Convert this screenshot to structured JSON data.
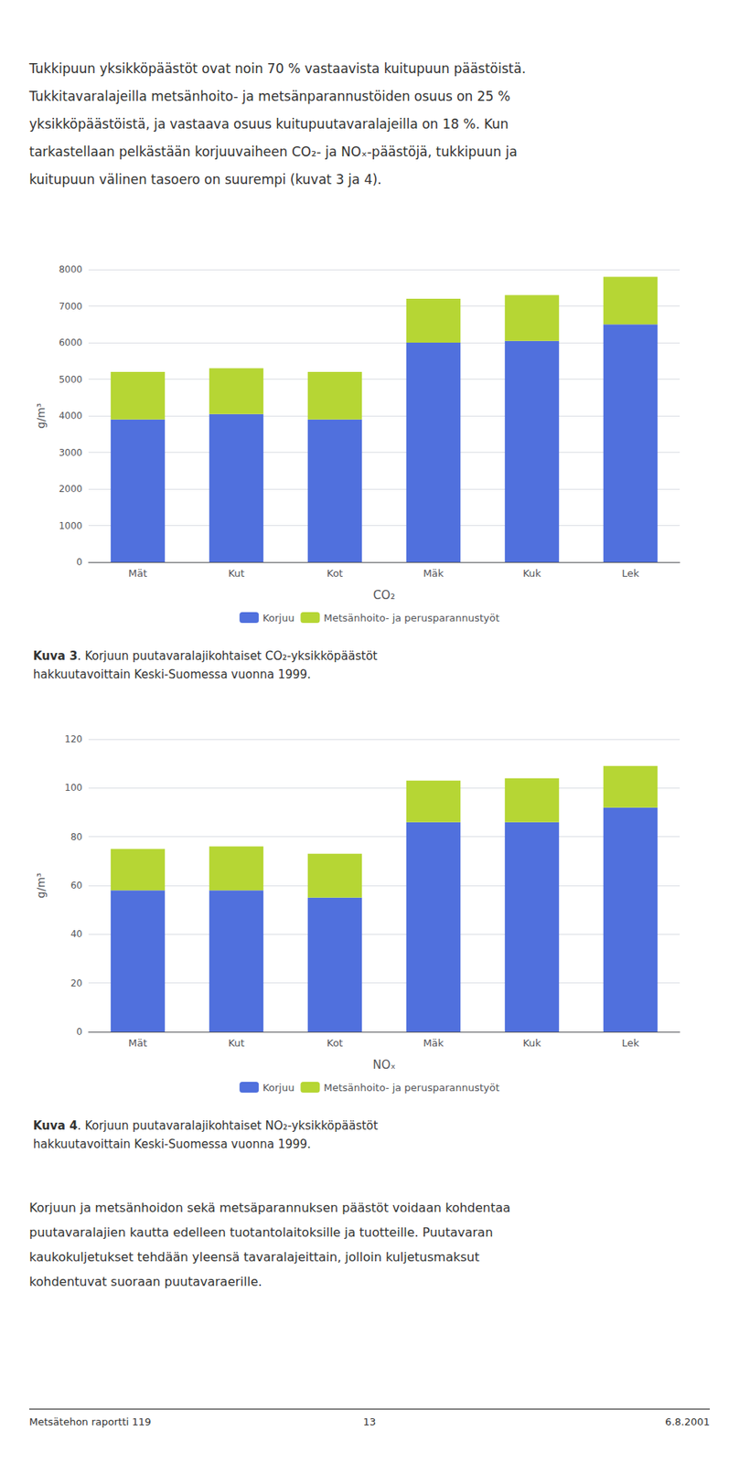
{
  "chart_data": [
    {
      "type": "bar",
      "stacked": true,
      "title": "Kuva 3. Korjuun puutavaralajikohtaiset CO₂-yksikköpäästöt\nhakkuutavoittain Keski-Suomessa vuonna 1999.",
      "xlabel": "CO₂",
      "ylabel": "g/m³",
      "categories": [
        "Mät",
        "Kut",
        "Kot",
        "Mäk",
        "Kuk",
        "Lek"
      ],
      "series": [
        {
          "name": "Korjuu",
          "values": [
            3900,
            4050,
            3900,
            6000,
            6050,
            6500
          ]
        },
        {
          "name": "Metsänhoito- ja perusparannustyöt",
          "values": [
            1300,
            1250,
            1300,
            1200,
            1250,
            1300
          ]
        }
      ],
      "ylim": [
        0,
        8000
      ],
      "yticks": [
        0,
        1000,
        2000,
        3000,
        4000,
        5000,
        6000,
        7000,
        8000
      ],
      "grid": true,
      "legend": "bottom",
      "annotations": [
        [
          "Tukkipuun yksikköpäästöt ovat noin 70 % vastaavista kuitupuun päästöistä.",
          "Tukkitavaralajeilla metsänhoito- ja metsänparannustöiden osuus on 25 %",
          "yksikköpäästöistä, ja vastaava osuus kuitupuutavaralajeilla on 18 %. Kun",
          "tarkastellaan pelkästään korjuuvaiheen CO₂- ja NOₓ-päästöjä, tukkipuun ja",
          "kuitupuun välinen tasoero on suurempi (kuvat 3 ja 4)."
        ]
      ]
    },
    {
      "type": "bar",
      "stacked": true,
      "title": "Kuva 4. Korjuun puutavaralajikohtaiset NO₂-yksikköpäästöt\nhakkuutavoittain Keski-Suomessa vuonna 1999.",
      "xlabel": "NOₓ",
      "ylabel": "g/m³",
      "categories": [
        "Mät",
        "Kut",
        "Kot",
        "Mäk",
        "Kuk",
        "Lek"
      ],
      "series": [
        {
          "name": "Korjuu",
          "values": [
            58,
            58,
            55,
            86,
            86,
            92
          ]
        },
        {
          "name": "Metsänhoito- ja perusparannustyöt",
          "values": [
            17,
            18,
            18,
            17,
            18,
            17
          ]
        }
      ],
      "ylim": [
        0,
        120
      ],
      "yticks": [
        0,
        20,
        40,
        60,
        80,
        100,
        120
      ],
      "grid": true,
      "legend": "bottom",
      "annotations": [
        [
          "Korjuun ja metsänhoidon sekä metsäparannuksen päästöt voidaan kohdentaa",
          "puutavaralajien kautta edelleen tuotantolaitoksille ja tuotteille. Puutavaran",
          "kaukokuljetukset tehdään yleensä tavaralajeittain, jolloin kuljetusmaksut",
          "kohdentuvat suoraan puutavaraerille."
        ],
        [
          "Metsätehon raportti 119",
          "13",
          "6.8.2001"
        ]
      ]
    }
  ]
}
